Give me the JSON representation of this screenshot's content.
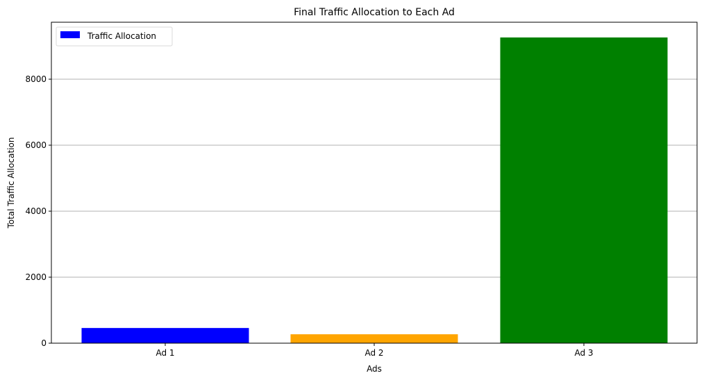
{
  "chart_data": {
    "type": "bar",
    "title": "Final Traffic Allocation to Each Ad",
    "xlabel": "Ads",
    "ylabel": "Total Traffic Allocation",
    "categories": [
      "Ad 1",
      "Ad 2",
      "Ad 3"
    ],
    "values": [
      460,
      270,
      9265
    ],
    "bar_colors": [
      "#0000ff",
      "#ffa500",
      "#008000"
    ],
    "ylim": [
      0,
      9730
    ],
    "yticks": [
      0,
      2000,
      4000,
      6000,
      8000
    ],
    "grid": {
      "axis": "y",
      "color": "#b0b0b0"
    },
    "legend": {
      "position": "upper left",
      "entries": [
        {
          "label": "Traffic Allocation",
          "color": "#0000ff"
        }
      ]
    }
  }
}
